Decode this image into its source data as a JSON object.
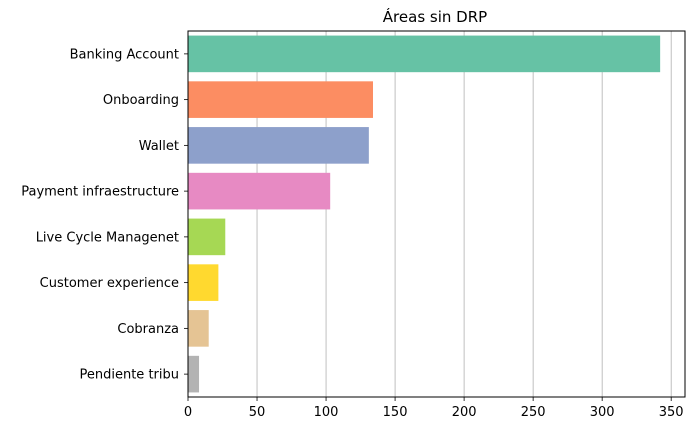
{
  "chart_data": {
    "type": "bar",
    "orientation": "horizontal",
    "title": "Áreas sin DRP",
    "xlabel": "",
    "ylabel": "",
    "categories": [
      "Banking Account",
      "Onboarding",
      "Wallet",
      "Payment infraestructure",
      "Live Cycle Managenet",
      "Customer experience",
      "Cobranza",
      "Pendiente tribu"
    ],
    "values": [
      342,
      134,
      131,
      103,
      27,
      22,
      15,
      8
    ],
    "colors": [
      "#66c2a5",
      "#fc8d62",
      "#8da0cb",
      "#e78ac3",
      "#a6d854",
      "#ffd92f",
      "#e5c494",
      "#b3b3b3"
    ],
    "xlim": [
      0,
      360
    ],
    "xticks": [
      0,
      50,
      100,
      150,
      200,
      250,
      300,
      350
    ],
    "grid": "x",
    "legend": "none"
  }
}
